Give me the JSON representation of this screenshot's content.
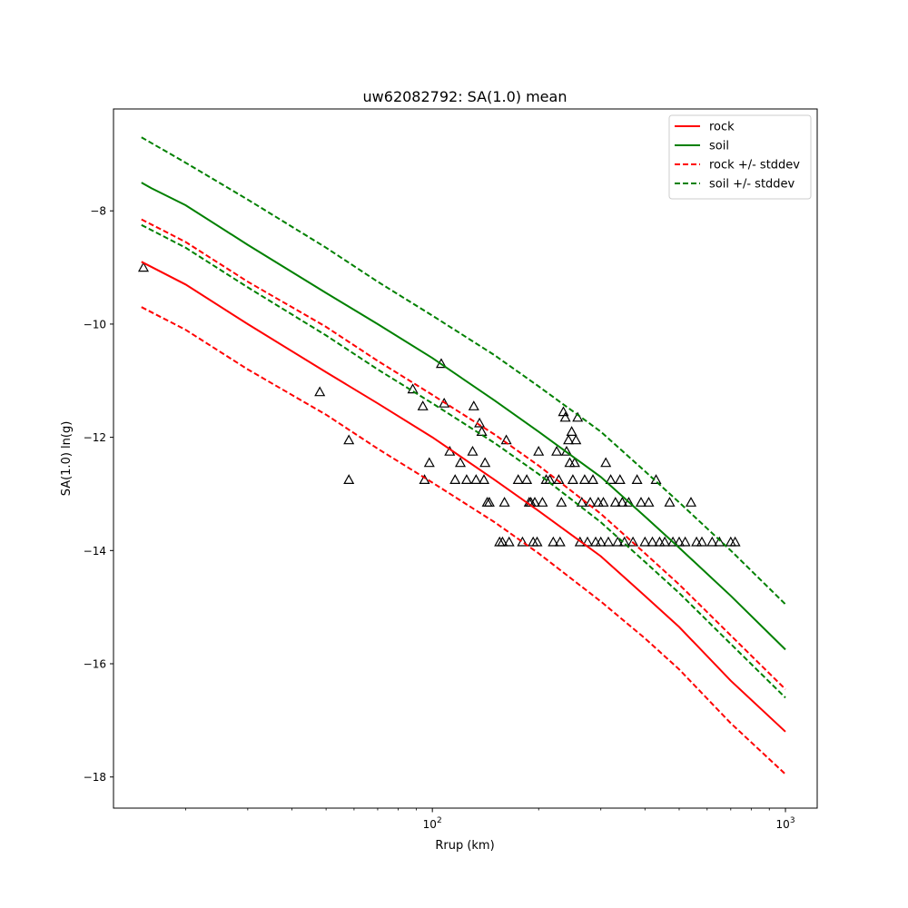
{
  "chart_data": {
    "type": "line",
    "title": "uw62082792: SA(1.0) mean",
    "xlabel": "Rrup (km)",
    "ylabel": "SA(1.0) ln(g)",
    "xscale": "log",
    "xlim": [
      12.5,
      1230
    ],
    "ylim": [
      -18.55,
      -6.2
    ],
    "x_tick_labels": [
      "10^2",
      "10^3"
    ],
    "y_ticks": [
      -18,
      -16,
      -14,
      -12,
      -10,
      -8
    ],
    "grid": false,
    "legend_position": "top-right",
    "series": [
      {
        "name": "rock",
        "style": "solid",
        "color": "#ff0000",
        "x": [
          15,
          20,
          30,
          50,
          70,
          100,
          150,
          200,
          300,
          400,
          500,
          700,
          1000
        ],
        "y": [
          -8.9,
          -9.3,
          -10.0,
          -10.85,
          -11.4,
          -12.0,
          -12.75,
          -13.3,
          -14.1,
          -14.8,
          -15.35,
          -16.3,
          -17.2
        ]
      },
      {
        "name": "soil",
        "style": "solid",
        "color": "#008000",
        "x": [
          15,
          16,
          20,
          30,
          50,
          70,
          100,
          150,
          200,
          300,
          400,
          500,
          700,
          1000
        ],
        "y": [
          -7.5,
          -7.6,
          -7.9,
          -8.6,
          -9.45,
          -10.0,
          -10.6,
          -11.35,
          -11.9,
          -12.7,
          -13.4,
          -13.95,
          -14.8,
          -15.75
        ]
      },
      {
        "name": "rock +/- stddev",
        "style": "dashed",
        "color": "#ff0000",
        "x": [
          15,
          20,
          30,
          50,
          70,
          100,
          150,
          200,
          300,
          400,
          500,
          700,
          1000
        ],
        "y": [
          -8.15,
          -8.55,
          -9.25,
          -10.05,
          -10.65,
          -11.25,
          -11.95,
          -12.5,
          -13.35,
          -14.05,
          -14.6,
          -15.5,
          -16.45
        ]
      },
      {
        "name": "rock +/- stddev (lower)",
        "style": "dashed",
        "color": "#ff0000",
        "legend": false,
        "x": [
          15,
          20,
          30,
          50,
          70,
          100,
          150,
          200,
          300,
          400,
          500,
          700,
          1000
        ],
        "y": [
          -9.7,
          -10.1,
          -10.8,
          -11.6,
          -12.2,
          -12.8,
          -13.5,
          -14.05,
          -14.9,
          -15.55,
          -16.1,
          -17.05,
          -17.95
        ]
      },
      {
        "name": "soil +/- stddev",
        "style": "dashed",
        "color": "#008000",
        "x": [
          15,
          20,
          30,
          50,
          70,
          100,
          150,
          200,
          300,
          400,
          500,
          700,
          1000
        ],
        "y": [
          -6.7,
          -7.15,
          -7.8,
          -8.65,
          -9.25,
          -9.85,
          -10.55,
          -11.1,
          -11.9,
          -12.6,
          -13.15,
          -14.0,
          -14.95
        ]
      },
      {
        "name": "soil +/- stddev (lower)",
        "style": "dashed",
        "color": "#008000",
        "legend": false,
        "x": [
          15,
          20,
          30,
          50,
          70,
          100,
          150,
          200,
          300,
          400,
          500,
          700,
          1000
        ],
        "y": [
          -8.25,
          -8.65,
          -9.35,
          -10.2,
          -10.8,
          -11.4,
          -12.1,
          -12.65,
          -13.5,
          -14.2,
          -14.75,
          -15.65,
          -16.6
        ]
      }
    ],
    "observations": {
      "marker": "triangle",
      "color": "#000000",
      "x": [
        15.2,
        48,
        58,
        58,
        88,
        94,
        95,
        98,
        106,
        108,
        112,
        116,
        120,
        125,
        130,
        131,
        133,
        136,
        138,
        140,
        141,
        143,
        145,
        155,
        158,
        160,
        162,
        165,
        175,
        180,
        185,
        188,
        190,
        193,
        195,
        198,
        200,
        205,
        210,
        215,
        220,
        225,
        228,
        230,
        232,
        235,
        238,
        240,
        243,
        245,
        248,
        250,
        253,
        255,
        258,
        262,
        265,
        270,
        275,
        280,
        285,
        290,
        295,
        300,
        305,
        310,
        315,
        320,
        330,
        335,
        340,
        345,
        350,
        360,
        370,
        380,
        390,
        400,
        410,
        420,
        430,
        440,
        455,
        470,
        480,
        500,
        520,
        540,
        560,
        580,
        620,
        650,
        700,
        720
      ],
      "y": [
        -9.0,
        -11.2,
        -12.05,
        -12.75,
        -11.15,
        -11.45,
        -12.75,
        -12.45,
        -10.7,
        -11.4,
        -12.25,
        -12.75,
        -12.45,
        -12.75,
        -12.25,
        -11.45,
        -12.75,
        -11.75,
        -11.9,
        -12.75,
        -12.45,
        -13.15,
        -13.15,
        -13.85,
        -13.85,
        -13.15,
        -12.05,
        -13.85,
        -12.75,
        -13.85,
        -12.75,
        -13.15,
        -13.15,
        -13.85,
        -13.15,
        -13.85,
        -12.25,
        -13.15,
        -12.75,
        -12.75,
        -13.85,
        -12.25,
        -12.75,
        -13.85,
        -13.15,
        -11.55,
        -11.65,
        -12.25,
        -12.05,
        -12.45,
        -11.9,
        -12.75,
        -12.45,
        -12.05,
        -11.65,
        -13.85,
        -13.15,
        -12.75,
        -13.85,
        -13.15,
        -12.75,
        -13.85,
        -13.15,
        -13.85,
        -13.15,
        -12.45,
        -13.85,
        -12.75,
        -13.15,
        -13.85,
        -12.75,
        -13.15,
        -13.85,
        -13.15,
        -13.85,
        -12.75,
        -13.15,
        -13.85,
        -13.15,
        -13.85,
        -12.75,
        -13.85,
        -13.85,
        -13.15,
        -13.85,
        -13.85,
        -13.85,
        -13.15,
        -13.85,
        -13.85,
        -13.85,
        -13.85,
        -13.85,
        -13.85
      ]
    }
  }
}
